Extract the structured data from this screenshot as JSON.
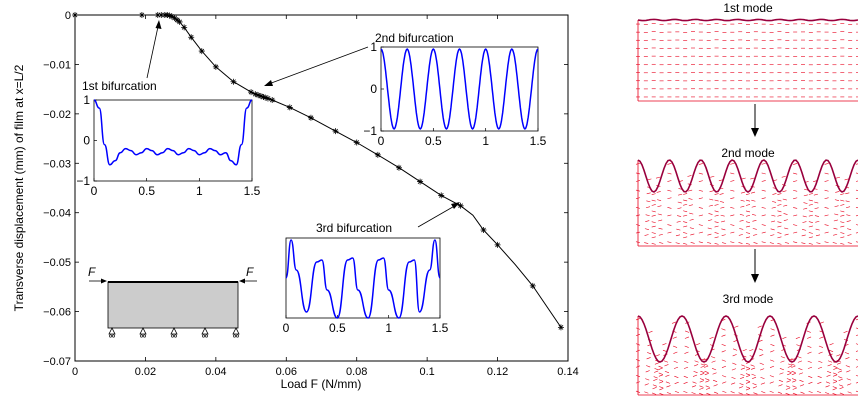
{
  "chart_data": [
    {
      "type": "line",
      "xlabel": "Load F (N/mm)",
      "ylabel": "Transverse displacement (mm) of film at x=L/2",
      "xlim": [
        0,
        0.14
      ],
      "ylim": [
        -0.07,
        0
      ],
      "xticks": [
        0,
        0.02,
        0.04,
        0.06,
        0.08,
        0.1,
        0.12,
        0.14
      ],
      "xtick_labels": [
        "0",
        "0.02",
        "0.04",
        "0.06",
        "0.08",
        "0.1",
        "0.12",
        "0.14"
      ],
      "yticks": [
        0,
        -0.01,
        -0.02,
        -0.03,
        -0.04,
        -0.05,
        -0.06,
        -0.07
      ],
      "ytick_labels": [
        "0",
        "−0.01",
        "−0.02",
        "−0.03",
        "−0.04",
        "−0.05",
        "−0.06",
        "−0.07"
      ],
      "series": [
        {
          "color": "#000000",
          "marker": "asterisk",
          "x": [
            0.0,
            0.004,
            0.008,
            0.013,
            0.019,
            0.0235,
            0.0245,
            0.0255,
            0.0262,
            0.0268,
            0.0275,
            0.0283,
            0.029,
            0.0297,
            0.0303,
            0.031,
            0.033,
            0.036,
            0.04,
            0.045,
            0.05,
            0.0505,
            0.0512,
            0.052,
            0.0528,
            0.0535,
            0.054,
            0.0548,
            0.056,
            0.061,
            0.067,
            0.074,
            0.08,
            0.086,
            0.092,
            0.098,
            0.104,
            0.1095,
            0.113,
            0.116,
            0.12,
            0.125,
            0.13,
            0.138
          ],
          "y": [
            0.0,
            0.0,
            0.0,
            0.0,
            0.0,
            0.0,
            0.0,
            0.0,
            0.0,
            -0.0001,
            -0.0003,
            -0.0006,
            -0.001,
            -0.0014,
            -0.0019,
            -0.0025,
            -0.0045,
            -0.0073,
            -0.0105,
            -0.0135,
            -0.0156,
            -0.0158,
            -0.016,
            -0.0162,
            -0.0164,
            -0.0166,
            -0.0167,
            -0.0169,
            -0.0172,
            -0.0187,
            -0.0208,
            -0.0235,
            -0.0258,
            -0.0283,
            -0.0309,
            -0.0337,
            -0.0365,
            -0.0386,
            -0.0405,
            -0.0435,
            -0.0465,
            -0.0505,
            -0.0548,
            -0.0632
          ],
          "markers_x": [
            0.0,
            0.019,
            0.0235,
            0.0245,
            0.0255,
            0.0262,
            0.0268,
            0.0275,
            0.0283,
            0.029,
            0.0297,
            0.031,
            0.033,
            0.036,
            0.04,
            0.045,
            0.05,
            0.0512,
            0.052,
            0.0528,
            0.0535,
            0.054,
            0.0548,
            0.056,
            0.061,
            0.067,
            0.074,
            0.08,
            0.086,
            0.092,
            0.098,
            0.104,
            0.1095,
            0.116,
            0.12,
            0.13,
            0.138
          ]
        }
      ],
      "annotations": [
        "1st bifurcation",
        "2nd bifurcation",
        "3rd bifurcation"
      ],
      "diagram_labels": [
        "F",
        "F"
      ]
    },
    {
      "type": "line",
      "xlim": [
        0,
        1.5
      ],
      "ylim": [
        -1,
        1
      ],
      "xticks": [
        0,
        0.5,
        1,
        1.5
      ],
      "xtick_labels": [
        "0",
        "0.5",
        "1",
        "1.5"
      ],
      "yticks": [
        1,
        0,
        -1
      ],
      "ytick_labels": [
        "1",
        "0",
        "−1"
      ],
      "color": "#0000ff",
      "x": [
        0,
        0.05,
        0.1,
        0.15,
        0.2,
        0.25,
        0.3,
        0.35,
        0.4,
        0.45,
        0.5,
        0.55,
        0.6,
        0.65,
        0.7,
        0.75,
        0.8,
        0.85,
        0.9,
        0.95,
        1.0,
        1.05,
        1.1,
        1.15,
        1.2,
        1.25,
        1.3,
        1.35,
        1.4,
        1.45,
        1.5
      ],
      "y": [
        1.0,
        0.8,
        -0.1,
        -0.6,
        -0.5,
        -0.3,
        -0.2,
        -0.25,
        -0.35,
        -0.3,
        -0.2,
        -0.25,
        -0.35,
        -0.3,
        -0.2,
        -0.25,
        -0.35,
        -0.3,
        -0.2,
        -0.25,
        -0.35,
        -0.3,
        -0.2,
        -0.25,
        -0.35,
        -0.3,
        -0.5,
        -0.6,
        -0.1,
        0.8,
        1.0
      ]
    },
    {
      "type": "line",
      "xlim": [
        0,
        1.5
      ],
      "ylim": [
        -1,
        1
      ],
      "xticks": [
        0,
        0.5,
        1,
        1.5
      ],
      "xtick_labels": [
        "0",
        "0.5",
        "1",
        "1.5"
      ],
      "yticks": [
        1,
        0,
        -1
      ],
      "ytick_labels": [
        "1",
        "0",
        "−1"
      ],
      "color": "#0000ff",
      "waves": 6,
      "amplitude": 0.95
    },
    {
      "type": "line",
      "xlim": [
        0,
        1.5
      ],
      "ylim": [
        -1,
        1
      ],
      "xticks": [
        0,
        0.5,
        1,
        1.5
      ],
      "xtick_labels": [
        "0",
        "0.5",
        "1",
        "1.5"
      ],
      "color": "#0000ff",
      "x": [
        0,
        0.05,
        0.1,
        0.2,
        0.3,
        0.35,
        0.4,
        0.5,
        0.6,
        0.65,
        0.7,
        0.8,
        0.9,
        0.95,
        1.0,
        1.1,
        1.2,
        1.25,
        1.3,
        1.4,
        1.45,
        1.5
      ],
      "y": [
        0,
        0.95,
        0.2,
        -0.85,
        0.4,
        0.45,
        -0.3,
        -1.0,
        0.45,
        0.5,
        -0.3,
        -1.0,
        0.45,
        0.5,
        -0.3,
        -1.0,
        0.4,
        0.45,
        -0.85,
        0.2,
        0.95,
        0.0
      ]
    }
  ],
  "modes": [
    {
      "label": "1st mode",
      "lobes": 0
    },
    {
      "label": "2nd mode",
      "lobes": 7
    },
    {
      "label": "3rd mode",
      "lobes": 5
    }
  ],
  "colors": {
    "main_curve": "#000000",
    "inset_curve": "#0000ff",
    "mode_line": "#99003d",
    "mode_field": "#e8001c",
    "beam_fill": "#cccccc"
  }
}
